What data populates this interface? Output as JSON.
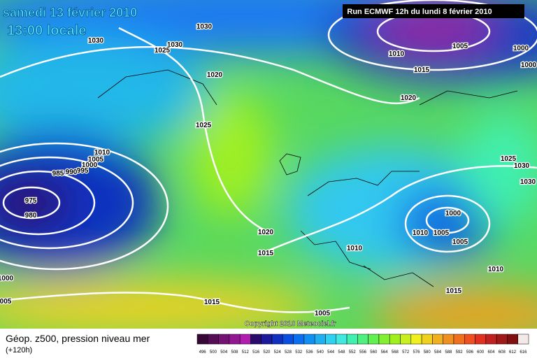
{
  "header": {
    "title": "samedi 13 février 2010",
    "time": "13:00 locale",
    "run": "Run ECMWF 12h du lundi 8 février 2010"
  },
  "isobar_labels": [
    "1030",
    "1030",
    "1030",
    "1025",
    "1020",
    "1025",
    "1020",
    "1015",
    "1010",
    "1005",
    "1000",
    "1000",
    "1010",
    "1005",
    "1000",
    "995",
    "990",
    "985",
    "975",
    "980",
    "1020",
    "1015",
    "1010",
    "1000",
    "1010",
    "1005",
    "1005",
    "1025",
    "1030",
    "1030",
    "1010",
    "1015",
    "1015",
    "1005",
    "1000",
    "005"
  ],
  "copyright": "Copyright 2010 Meteociel.fr",
  "legend": {
    "title": "Géop. z500, pression niveau mer",
    "subtitle": "(+120h)",
    "levels": [
      496,
      500,
      504,
      508,
      512,
      516,
      520,
      524,
      528,
      532,
      536,
      540,
      544,
      548,
      552,
      556,
      560,
      564,
      568,
      572,
      576,
      580,
      584,
      588,
      592,
      596,
      600,
      604,
      608,
      612,
      616
    ],
    "colors": [
      "#360836",
      "#550d55",
      "#731273",
      "#921892",
      "#b01eb0",
      "#2a0a6a",
      "#1a1a9a",
      "#1030c0",
      "#0a50e0",
      "#0a70f0",
      "#1090f0",
      "#20b0f0",
      "#30d0f0",
      "#40e8e0",
      "#40f0b0",
      "#50f080",
      "#60f050",
      "#80f030",
      "#a0f020",
      "#c8f020",
      "#f0f020",
      "#f0d020",
      "#f0b020",
      "#f09020",
      "#f07020",
      "#f05020",
      "#e03020",
      "#c02020",
      "#a01818",
      "#801010",
      "#f4e8e8"
    ]
  }
}
